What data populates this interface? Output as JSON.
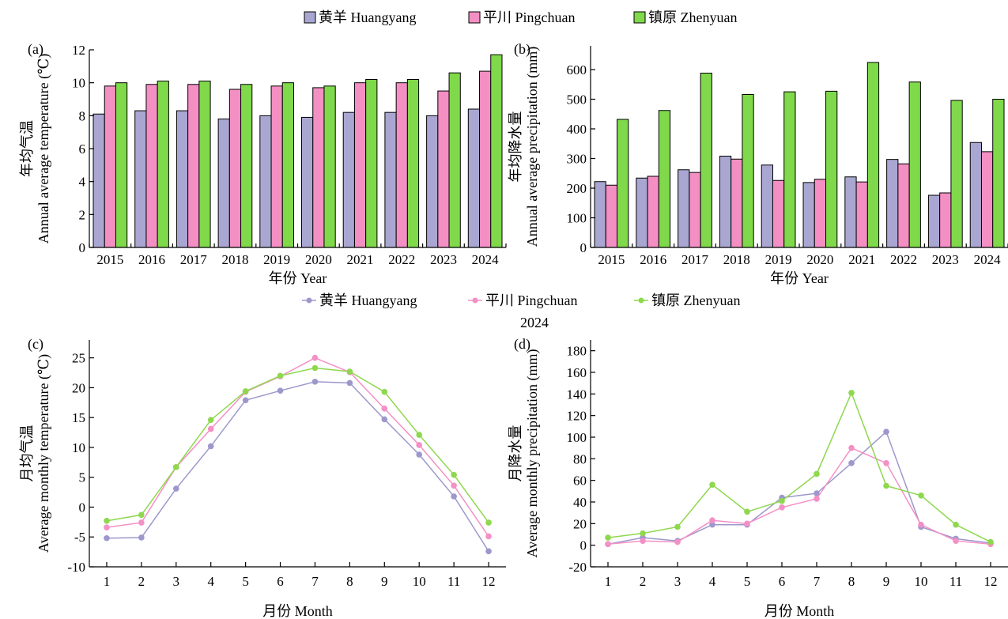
{
  "series_names": [
    "黄羊 Huangyang",
    "平川 Pingchuan",
    "镇原 Zhenyuan"
  ],
  "colors": {
    "bar": [
      "#a9a7d2",
      "#f38fc3",
      "#7fd94a"
    ],
    "line": [
      "#9d98cc",
      "#f490c6",
      "#8ed84e"
    ]
  },
  "year_label": "2024",
  "chart_data": [
    {
      "panel": "(a)",
      "type": "bar",
      "categories": [
        "2015",
        "2016",
        "2017",
        "2018",
        "2019",
        "2020",
        "2021",
        "2022",
        "2023",
        "2024"
      ],
      "series": [
        {
          "name": "黄羊 Huangyang",
          "values": [
            8.1,
            8.3,
            8.3,
            7.8,
            8.0,
            7.9,
            8.2,
            8.2,
            8.0,
            8.4
          ]
        },
        {
          "name": "平川 Pingchuan",
          "values": [
            9.8,
            9.9,
            9.9,
            9.6,
            9.8,
            9.7,
            10.0,
            10.0,
            9.5,
            10.7
          ]
        },
        {
          "name": "镇原 Zhenyuan",
          "values": [
            10.0,
            10.1,
            10.1,
            9.9,
            10.0,
            9.8,
            10.2,
            10.2,
            10.6,
            11.7
          ]
        }
      ],
      "xlabel": "年份 Year",
      "ylabel_cn": "年均气温",
      "ylabel_en": "Annual average temperature (℃)",
      "ylim": [
        0,
        12
      ],
      "yticks": [
        0,
        2,
        4,
        6,
        8,
        10,
        12
      ]
    },
    {
      "panel": "(b)",
      "type": "bar",
      "categories": [
        "2015",
        "2016",
        "2017",
        "2018",
        "2019",
        "2020",
        "2021",
        "2022",
        "2023",
        "2024"
      ],
      "series": [
        {
          "name": "黄羊 Huangyang",
          "values": [
            222,
            234,
            262,
            308,
            278,
            219,
            238,
            297,
            176,
            354
          ]
        },
        {
          "name": "平川 Pingchuan",
          "values": [
            210,
            240,
            253,
            298,
            226,
            230,
            221,
            282,
            184,
            323
          ]
        },
        {
          "name": "镇原 Zhenyuan",
          "values": [
            432,
            462,
            588,
            516,
            525,
            527,
            624,
            558,
            496,
            500
          ]
        }
      ],
      "xlabel": "年份 Year",
      "ylabel_cn": "年均降水量",
      "ylabel_en": "Annual average precipitation (mm)",
      "ylim": [
        0,
        680
      ],
      "yticks": [
        0,
        100,
        200,
        300,
        400,
        500,
        600
      ]
    },
    {
      "panel": "(c)",
      "type": "line",
      "x": [
        1,
        2,
        3,
        4,
        5,
        6,
        7,
        8,
        9,
        10,
        11,
        12
      ],
      "series": [
        {
          "name": "黄羊 Huangyang",
          "values": [
            -5.2,
            -5.1,
            3.1,
            10.2,
            17.9,
            19.5,
            21.0,
            20.8,
            14.7,
            8.8,
            1.8,
            -7.4
          ]
        },
        {
          "name": "平川 Pingchuan",
          "values": [
            -3.4,
            -2.6,
            6.7,
            13.1,
            19.3,
            21.9,
            25.0,
            22.6,
            16.5,
            10.4,
            3.6,
            -4.9
          ]
        },
        {
          "name": "镇原 Zhenyuan",
          "values": [
            -2.3,
            -1.3,
            6.7,
            14.6,
            19.4,
            22.0,
            23.3,
            22.7,
            19.3,
            12.1,
            5.4,
            -2.6
          ]
        }
      ],
      "xlabel": "月份 Month",
      "ylabel_cn": "月均气温",
      "ylabel_en": "Average monthly temperature (℃)",
      "xlim": [
        0.5,
        12.5
      ],
      "ylim": [
        -10,
        28
      ],
      "yticks": [
        -10,
        -5,
        0,
        5,
        10,
        15,
        20,
        25
      ]
    },
    {
      "panel": "(d)",
      "type": "line",
      "x": [
        1,
        2,
        3,
        4,
        5,
        6,
        7,
        8,
        9,
        10,
        11,
        12
      ],
      "series": [
        {
          "name": "黄羊 Huangyang",
          "values": [
            1,
            7,
            4,
            19,
            19,
            44,
            48,
            76,
            105,
            17,
            6,
            2
          ]
        },
        {
          "name": "平川 Pingchuan",
          "values": [
            1,
            4,
            3,
            23,
            20,
            35,
            43,
            90,
            76,
            19,
            4,
            1
          ]
        },
        {
          "name": "镇原 Zhenyuan",
          "values": [
            7,
            11,
            17,
            56,
            31,
            41,
            66,
            141,
            55,
            46,
            19,
            3
          ]
        }
      ],
      "xlabel": "月份 Month",
      "ylabel_cn": "月降水量",
      "ylabel_en": "Average monthly precipitation (mm)",
      "xlim": [
        0.5,
        12.5
      ],
      "ylim": [
        -20,
        190
      ],
      "yticks": [
        -20,
        0,
        20,
        40,
        60,
        80,
        100,
        120,
        140,
        160,
        180
      ]
    }
  ]
}
